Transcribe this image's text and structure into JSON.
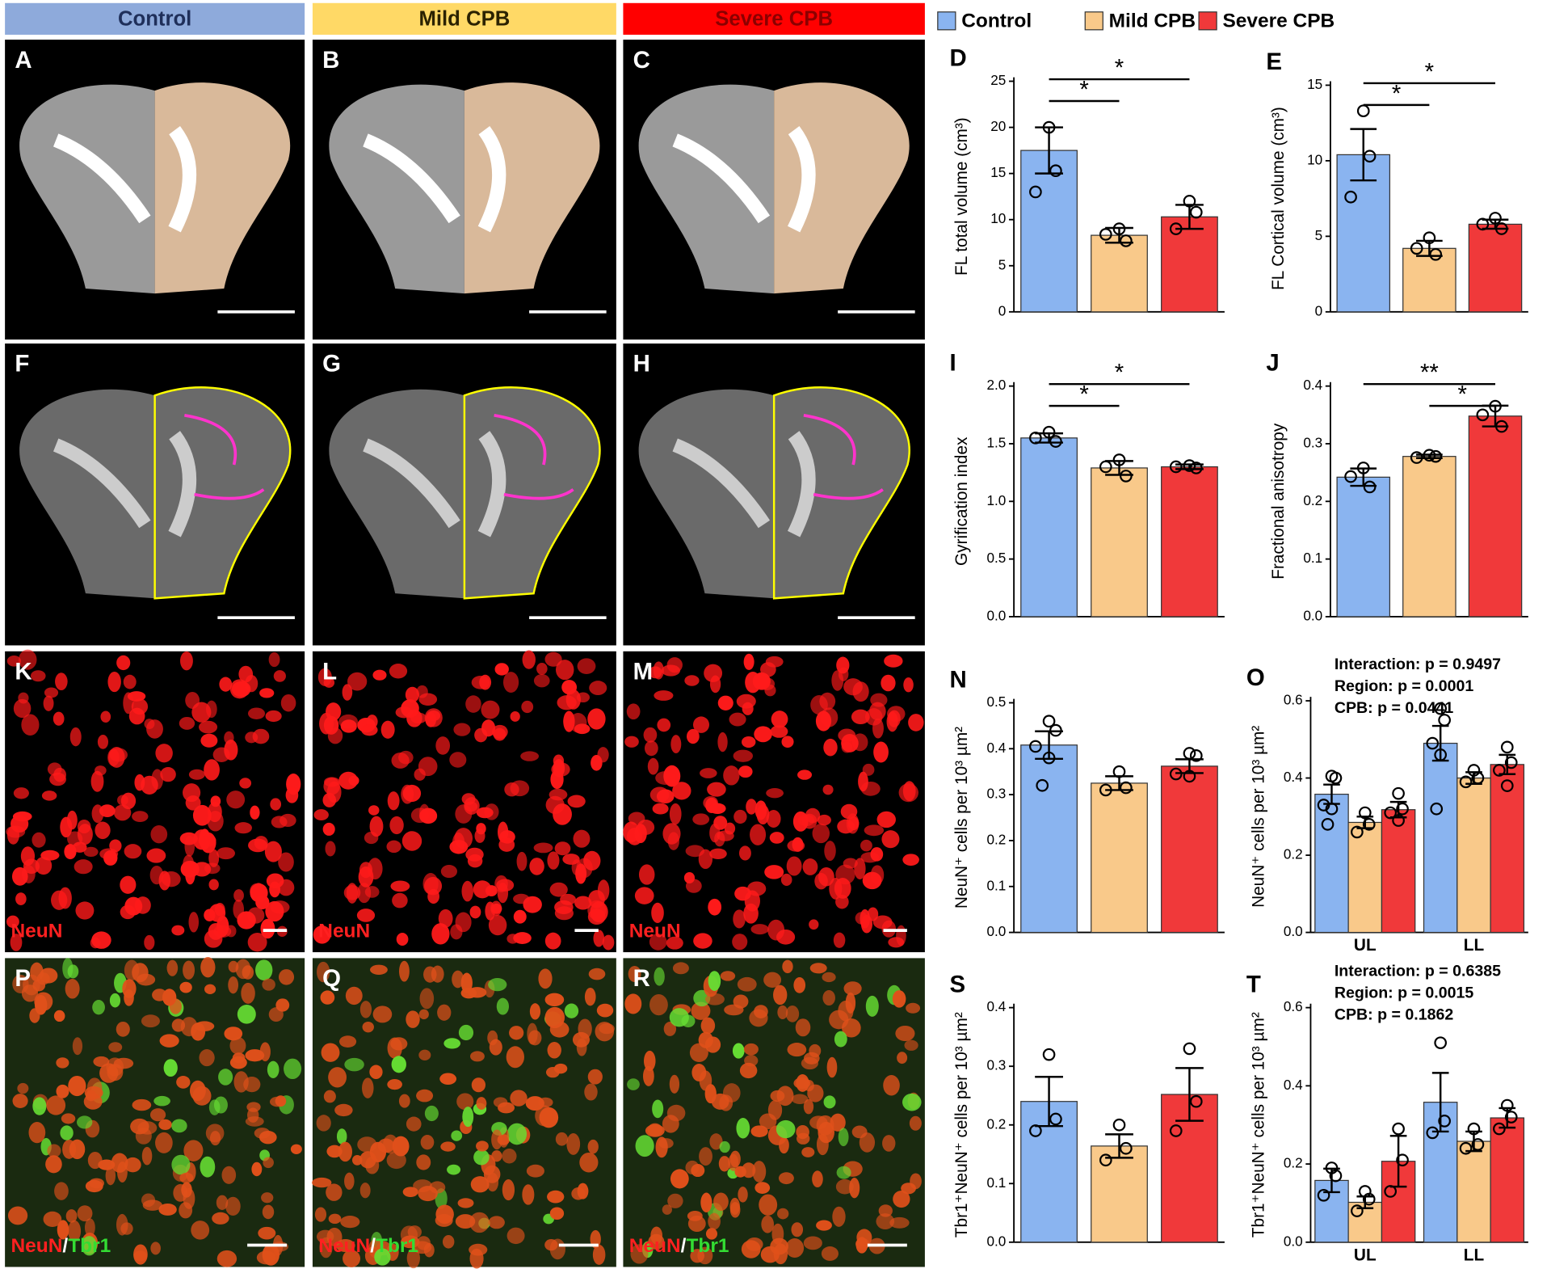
{
  "columns": [
    {
      "label": "Control",
      "color": "#8eaadb"
    },
    {
      "label": "Mild CPB",
      "color": "#ffd966"
    },
    {
      "label": "Severe CPB",
      "color": "#ff0000"
    }
  ],
  "legend": {
    "items": [
      {
        "name": "Control",
        "color": "#8ab4f0"
      },
      {
        "name": "Mild CPB",
        "color": "#f9c98a"
      },
      {
        "name": "Severe CPB",
        "color": "#f0393a"
      }
    ]
  },
  "image_rows": [
    {
      "panels": [
        "A",
        "B",
        "C"
      ]
    },
    {
      "panels": [
        "F",
        "G",
        "H"
      ]
    },
    {
      "panels": [
        "K",
        "L",
        "M"
      ],
      "stain": [
        "NeuN"
      ]
    },
    {
      "panels": [
        "P",
        "Q",
        "R"
      ],
      "stain": [
        "NeuN",
        "/",
        "Tbr1"
      ]
    }
  ],
  "chart_data": [
    {
      "type": "bar",
      "panel": "D",
      "ylabel": "FL total volume (cm³)",
      "ylim": [
        0,
        25
      ],
      "yticks": [
        0,
        5,
        10,
        15,
        20,
        25
      ],
      "values": [
        17.5,
        8.3,
        10.3
      ],
      "errors": [
        2.5,
        0.8,
        1.3
      ],
      "points": [
        [
          20,
          15.3,
          13
        ],
        [
          9,
          7.7,
          8.4
        ],
        [
          12,
          10.8,
          9
        ]
      ],
      "brackets": [
        {
          "label": "*",
          "groups": [
            0,
            1
          ]
        },
        {
          "label": "*",
          "groups": [
            0,
            2
          ]
        }
      ]
    },
    {
      "type": "bar",
      "panel": "E",
      "ylabel": "FL Cortical volume (cm³)",
      "ylim": [
        0,
        15
      ],
      "yticks": [
        0,
        5,
        10,
        15
      ],
      "values": [
        10.4,
        4.2,
        5.8
      ],
      "errors": [
        1.7,
        0.5,
        0.3
      ],
      "points": [
        [
          13.3,
          10.3,
          7.6
        ],
        [
          4.9,
          3.8,
          4.2
        ],
        [
          6.2,
          5.5,
          5.8
        ]
      ],
      "brackets": [
        {
          "label": "*",
          "groups": [
            0,
            1
          ]
        },
        {
          "label": "*",
          "groups": [
            0,
            2
          ]
        }
      ]
    },
    {
      "type": "bar",
      "panel": "I",
      "ylabel": "Gyrification index",
      "ylim": [
        0,
        2
      ],
      "yticks": [
        {
          "value": 0,
          "label": "0.0"
        },
        0.5,
        {
          "value": 1,
          "label": "1.0"
        },
        1.5,
        {
          "value": 2,
          "label": "2.0"
        }
      ],
      "values": [
        1.55,
        1.29,
        1.3
      ],
      "errors": [
        0.04,
        0.06,
        0.02
      ],
      "points": [
        [
          1.6,
          1.52,
          1.55
        ],
        [
          1.36,
          1.22,
          1.3
        ],
        [
          1.31,
          1.29,
          1.3
        ]
      ],
      "brackets": [
        {
          "label": "*",
          "groups": [
            0,
            1
          ]
        },
        {
          "label": "*",
          "groups": [
            0,
            2
          ]
        }
      ]
    },
    {
      "type": "bar",
      "panel": "J",
      "ylabel": "Fractional anisotropy",
      "ylim": [
        0,
        0.4
      ],
      "yticks": [
        {
          "value": 0,
          "label": "0.0"
        },
        0.1,
        0.2,
        0.3,
        0.4
      ],
      "values": [
        0.242,
        0.278,
        0.348
      ],
      "errors": [
        0.015,
        0.003,
        0.018
      ],
      "points": [
        [
          0.258,
          0.225,
          0.243
        ],
        [
          0.28,
          0.278,
          0.276
        ],
        [
          0.365,
          0.33,
          0.35
        ]
      ],
      "brackets": [
        {
          "label": "*",
          "groups": [
            1,
            2
          ]
        },
        {
          "label": "**",
          "groups": [
            0,
            2
          ]
        }
      ]
    },
    {
      "type": "bar",
      "panel": "N",
      "ylabel": "NeuN⁺ cells per 10³ µm²",
      "ylim": [
        0,
        0.5
      ],
      "yticks": [
        {
          "value": 0,
          "label": "0.0"
        },
        0.1,
        0.2,
        0.3,
        0.4,
        0.5
      ],
      "values": [
        0.408,
        0.325,
        0.362
      ],
      "errors": [
        0.03,
        0.015,
        0.015
      ],
      "points": [
        [
          0.46,
          0.44,
          0.405,
          0.38,
          0.32
        ],
        [
          0.35,
          0.315,
          0.31
        ],
        [
          0.39,
          0.385,
          0.345,
          0.34
        ]
      ]
    },
    {
      "type": "grouped-bar",
      "panel": "O",
      "ylabel": "NeuN⁺ cells per 10³ µm²",
      "ylim": [
        0,
        0.6
      ],
      "yticks": [
        {
          "value": 0,
          "label": "0.0"
        },
        0.2,
        0.4,
        0.6
      ],
      "annotations": [
        "Interaction: p = 0.9497",
        "Region: p = 0.0001",
        "CPB: p = 0.0441"
      ],
      "categories": [
        "UL",
        "LL"
      ],
      "series": [
        {
          "values": [
            0.358,
            0.49
          ],
          "errors": [
            0.025,
            0.045
          ],
          "points": [
            [
              0.405,
              0.4,
              0.33,
              0.32,
              0.28
            ],
            [
              0.58,
              0.55,
              0.49,
              0.46,
              0.32
            ]
          ]
        },
        {
          "values": [
            0.285,
            0.4
          ],
          "errors": [
            0.015,
            0.015
          ],
          "points": [
            [
              0.31,
              0.28,
              0.26
            ],
            [
              0.42,
              0.4,
              0.39
            ]
          ]
        },
        {
          "values": [
            0.318,
            0.435
          ],
          "errors": [
            0.02,
            0.025
          ],
          "points": [
            [
              0.36,
              0.32,
              0.31,
              0.29
            ],
            [
              0.48,
              0.44,
              0.42,
              0.38
            ]
          ]
        }
      ]
    },
    {
      "type": "bar",
      "panel": "S",
      "ylabel": "Tbr1⁺NeuN⁺ cells per 10³ µm²",
      "ylim": [
        0,
        0.4
      ],
      "yticks": [
        {
          "value": 0,
          "label": "0.0"
        },
        0.1,
        0.2,
        0.3,
        0.4
      ],
      "values": [
        0.24,
        0.164,
        0.252
      ],
      "errors": [
        0.042,
        0.02,
        0.045
      ],
      "points": [
        [
          0.32,
          0.21,
          0.19
        ],
        [
          0.2,
          0.16,
          0.14
        ],
        [
          0.33,
          0.24,
          0.19
        ]
      ]
    },
    {
      "type": "grouped-bar",
      "panel": "T",
      "ylabel": "Tbr1⁺NeuN⁺ cells per 10³ µm²",
      "ylim": [
        0,
        0.6
      ],
      "yticks": [
        {
          "value": 0,
          "label": "0.0"
        },
        0.2,
        0.4,
        0.6
      ],
      "annotations": [
        "Interaction: p = 0.6385",
        "Region: p = 0.0015",
        "CPB: p = 0.1862"
      ],
      "categories": [
        "UL",
        "LL"
      ],
      "series": [
        {
          "values": [
            0.158,
            0.358
          ],
          "errors": [
            0.03,
            0.075
          ],
          "points": [
            [
              0.19,
              0.17,
              0.12
            ],
            [
              0.51,
              0.31,
              0.28
            ]
          ]
        },
        {
          "values": [
            0.102,
            0.258
          ],
          "errors": [
            0.015,
            0.025
          ],
          "points": [
            [
              0.13,
              0.11,
              0.08
            ],
            [
              0.29,
              0.25,
              0.24
            ]
          ]
        },
        {
          "values": [
            0.207,
            0.318
          ],
          "errors": [
            0.065,
            0.025
          ],
          "points": [
            [
              0.29,
              0.21,
              0.13
            ],
            [
              0.35,
              0.32,
              0.29
            ]
          ]
        }
      ]
    }
  ]
}
